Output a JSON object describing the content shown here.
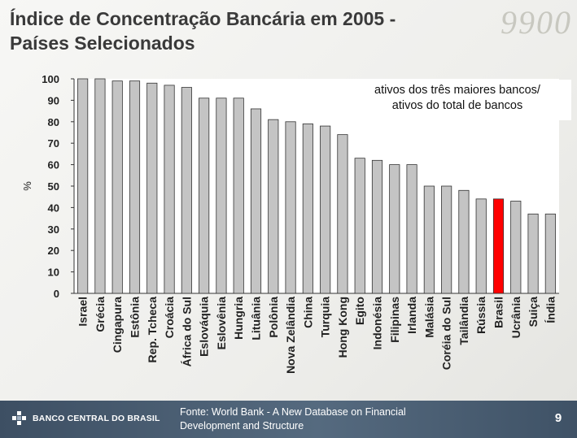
{
  "slide": {
    "title_line1": "Índice de Concentração Bancária em 2005 -",
    "title_line2": "Países Selecionados",
    "bank_name": "BANCO CENTRAL DO BRASIL",
    "source_line1": "Fonte: World Bank - A New Database on Financial",
    "source_line2": "Development and Structure",
    "page_number": "9",
    "watermark_text": "9900"
  },
  "colors": {
    "bar": "#c4c4c4",
    "bar_highlight": "#ff0000",
    "plot_bg": "#ffffff"
  },
  "chart_data": {
    "type": "bar",
    "title": "ativos dos três maiores bancos/ ativos do total de bancos",
    "annotation_line1": "ativos dos três maiores bancos/",
    "annotation_line2": "ativos do total de bancos",
    "xlabel": "",
    "ylabel": "%",
    "ylim": [
      0,
      100
    ],
    "yticks": [
      0,
      10,
      20,
      30,
      40,
      50,
      60,
      70,
      80,
      90,
      100
    ],
    "grid": false,
    "highlight": "Brasil",
    "categories": [
      "Israel",
      "Grécia",
      "Cingapura",
      "Estônia",
      "Rep. Tcheca",
      "Croácia",
      "África do Sul",
      "Eslováquia",
      "Eslovênia",
      "Hungria",
      "Lituânia",
      "Polônia",
      "Nova Zelândia",
      "China",
      "Turquia",
      "Hong Kong",
      "Egito",
      "Indonésia",
      "Filipinas",
      "Irlanda",
      "Malásia",
      "Coréia do Sul",
      "Tailândia",
      "Rússia",
      "Brasil",
      "Ucrânia",
      "Suiça",
      "Índia"
    ],
    "values": [
      100,
      100,
      99,
      99,
      98,
      97,
      96,
      91,
      91,
      91,
      86,
      81,
      80,
      79,
      78,
      74,
      63,
      62,
      60,
      60,
      50,
      50,
      48,
      44,
      44,
      43,
      37,
      37
    ]
  }
}
